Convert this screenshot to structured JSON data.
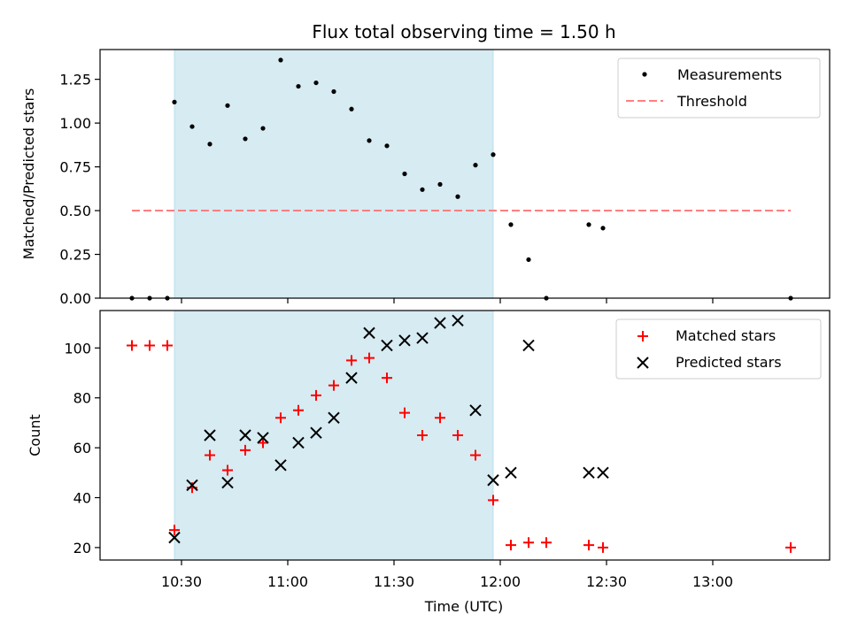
{
  "chart_data": [
    {
      "type": "scatter",
      "title": "Flux total observing time = 1.50 h",
      "xlabel": "",
      "ylabel": "Matched/Predicted stars",
      "ylim": [
        0.0,
        1.42
      ],
      "yticks": [
        "0.00",
        "0.25",
        "0.50",
        "0.75",
        "1.00",
        "1.25"
      ],
      "ytick_values": [
        0.0,
        0.25,
        0.5,
        0.75,
        1.0,
        1.25
      ],
      "xlim": [
        "10:07",
        "13:33"
      ],
      "highlight_span": [
        "10:28",
        "11:58"
      ],
      "legend": {
        "placement": "upper right",
        "entries": [
          "Measurements",
          "Threshold"
        ]
      },
      "threshold": {
        "name": "Threshold",
        "value": 0.5,
        "x_range": [
          "10:16",
          "13:22"
        ],
        "color": "#ff7f7f"
      },
      "series": [
        {
          "name": "Measurements",
          "marker": "dot",
          "color": "#000000",
          "x": [
            "10:16",
            "10:21",
            "10:26",
            "10:28",
            "10:33",
            "10:38",
            "10:43",
            "10:48",
            "10:53",
            "10:58",
            "11:03",
            "11:08",
            "11:13",
            "11:18",
            "11:23",
            "11:28",
            "11:33",
            "11:38",
            "11:43",
            "11:48",
            "11:53",
            "11:58",
            "12:03",
            "12:08",
            "12:13",
            "12:25",
            "12:29",
            "13:22"
          ],
          "values": [
            0.0,
            0.0,
            0.0,
            1.12,
            0.98,
            0.88,
            1.1,
            0.91,
            0.97,
            1.36,
            1.21,
            1.23,
            1.18,
            1.08,
            0.9,
            0.87,
            0.71,
            0.62,
            0.65,
            0.58,
            0.76,
            0.82,
            0.42,
            0.22,
            0.0,
            0.42,
            0.4,
            0.0
          ]
        }
      ]
    },
    {
      "type": "scatter",
      "title": "",
      "xlabel": "Time (UTC)",
      "ylabel": "Count",
      "ylim": [
        15,
        115
      ],
      "yticks": [
        "20",
        "40",
        "60",
        "80",
        "100"
      ],
      "ytick_values": [
        20,
        40,
        60,
        80,
        100
      ],
      "xticks": [
        "10:30",
        "11:00",
        "11:30",
        "12:00",
        "12:30",
        "13:00"
      ],
      "xlim": [
        "10:07",
        "13:33"
      ],
      "highlight_span": [
        "10:28",
        "11:58"
      ],
      "legend": {
        "placement": "upper right",
        "entries": [
          "Matched stars",
          "Predicted stars"
        ]
      },
      "series": [
        {
          "name": "Matched stars",
          "marker": "plus",
          "color": "#ff0000",
          "x": [
            "10:16",
            "10:21",
            "10:26",
            "10:28",
            "10:33",
            "10:38",
            "10:43",
            "10:48",
            "10:53",
            "10:58",
            "11:03",
            "11:08",
            "11:13",
            "11:18",
            "11:23",
            "11:28",
            "11:33",
            "11:38",
            "11:43",
            "11:48",
            "11:53",
            "11:58",
            "12:03",
            "12:08",
            "12:13",
            "12:25",
            "12:29",
            "13:22"
          ],
          "values": [
            101,
            101,
            101,
            27,
            44,
            57,
            51,
            59,
            62,
            72,
            75,
            81,
            85,
            95,
            96,
            88,
            74,
            65,
            72,
            65,
            57,
            39,
            21,
            22,
            22,
            21,
            20,
            20
          ]
        },
        {
          "name": "Predicted stars",
          "marker": "x",
          "color": "#000000",
          "x": [
            "10:28",
            "10:33",
            "10:38",
            "10:43",
            "10:48",
            "10:53",
            "10:58",
            "11:03",
            "11:08",
            "11:13",
            "11:18",
            "11:23",
            "11:28",
            "11:33",
            "11:38",
            "11:43",
            "11:48",
            "11:53",
            "11:58",
            "12:03",
            "12:08",
            "12:25",
            "12:29"
          ],
          "values": [
            24,
            45,
            65,
            46,
            65,
            64,
            53,
            62,
            66,
            72,
            88,
            106,
            101,
            103,
            104,
            110,
            111,
            75,
            47,
            50,
            101,
            50,
            50
          ]
        }
      ]
    }
  ]
}
